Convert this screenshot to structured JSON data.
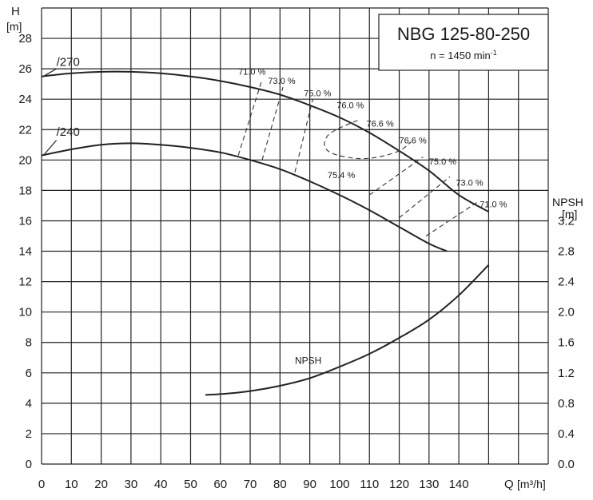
{
  "chart_data": {
    "type": "line",
    "title": "NBG 125-80-250",
    "subtitle_base": "n = 1450 min",
    "subtitle_sup": "-1",
    "xlabel": "Q [m³/h]",
    "x_name": "Q",
    "x_unit": "[m³/h]",
    "y_left_name": "H",
    "y_left_unit": "[m]",
    "y_right_name": "NPSH",
    "y_right_unit": "[m]",
    "xlim": [
      0,
      170
    ],
    "ylim_left": [
      0,
      30
    ],
    "ylim_right": [
      0,
      6
    ],
    "x_ticks": [
      0,
      10,
      20,
      30,
      40,
      50,
      60,
      70,
      80,
      90,
      100,
      110,
      120,
      130,
      140
    ],
    "y_left_ticks": [
      0,
      2,
      4,
      6,
      8,
      10,
      12,
      14,
      16,
      18,
      20,
      22,
      24,
      26,
      28
    ],
    "y_right_ticks": [
      "0.0",
      "0.4",
      "0.8",
      "1.2",
      "1.6",
      "2.0",
      "2.4",
      "2.8",
      "3.2"
    ],
    "grid": true,
    "series": [
      {
        "name": "/270",
        "axis": "left",
        "x": [
          0,
          10,
          20,
          30,
          40,
          50,
          60,
          70,
          80,
          90,
          100,
          110,
          120,
          130,
          140,
          150
        ],
        "y": [
          25.5,
          25.7,
          25.8,
          25.8,
          25.7,
          25.5,
          25.2,
          24.8,
          24.3,
          23.6,
          22.8,
          21.8,
          20.6,
          19.3,
          17.7,
          16.6
        ]
      },
      {
        "name": "/240",
        "axis": "left",
        "x": [
          0,
          10,
          20,
          30,
          40,
          50,
          60,
          70,
          80,
          90,
          100,
          110,
          120,
          130,
          136
        ],
        "y": [
          20.3,
          20.7,
          21.0,
          21.1,
          21.0,
          20.8,
          20.5,
          20.0,
          19.4,
          18.6,
          17.7,
          16.7,
          15.6,
          14.5,
          14.0
        ]
      },
      {
        "name": "NPSH",
        "axis": "right",
        "x": [
          55,
          60,
          70,
          80,
          90,
          100,
          110,
          120,
          130,
          140,
          150
        ],
        "y": [
          0.91,
          0.92,
          0.96,
          1.03,
          1.13,
          1.28,
          1.45,
          1.66,
          1.9,
          2.22,
          2.62
        ]
      }
    ],
    "efficiency_labels": [
      {
        "label": "71.0 %",
        "x": 66,
        "y": 25.6
      },
      {
        "label": "73.0 %",
        "x": 76,
        "y": 25.0
      },
      {
        "label": "75.0 %",
        "x": 88,
        "y": 24.2
      },
      {
        "label": "76.0 %",
        "x": 99,
        "y": 23.4
      },
      {
        "label": "76.6 %",
        "x": 109,
        "y": 22.2
      },
      {
        "label": "76.6 %",
        "x": 120,
        "y": 21.1
      },
      {
        "label": "75.0 %",
        "x": 130,
        "y": 19.7
      },
      {
        "label": "73.0 %",
        "x": 139,
        "y": 18.3
      },
      {
        "label": "71.0 %",
        "x": 147,
        "y": 16.9
      },
      {
        "label": "75.4 %",
        "x": 96,
        "y": 18.8
      }
    ],
    "efficiency_lines": [
      {
        "x": [
          66,
          74
        ],
        "y": [
          20.3,
          25.3
        ]
      },
      {
        "x": [
          74,
          81
        ],
        "y": [
          20.0,
          24.8
        ]
      },
      {
        "x": [
          85,
          91
        ],
        "y": [
          19.2,
          24.0
        ]
      },
      {
        "x": [
          110,
          128
        ],
        "y": [
          17.7,
          20.2
        ]
      },
      {
        "x": [
          120,
          137
        ],
        "y": [
          16.2,
          18.9
        ]
      },
      {
        "x": [
          129,
          146
        ],
        "y": [
          15.0,
          17.2
        ]
      }
    ],
    "efficiency_loop": {
      "x": [
        106,
        100,
        96,
        95,
        98,
        106,
        113,
        120,
        124
      ],
      "y": [
        22.6,
        22.1,
        21.6,
        20.9,
        20.4,
        20.1,
        20.2,
        20.6,
        21.2
      ]
    }
  }
}
